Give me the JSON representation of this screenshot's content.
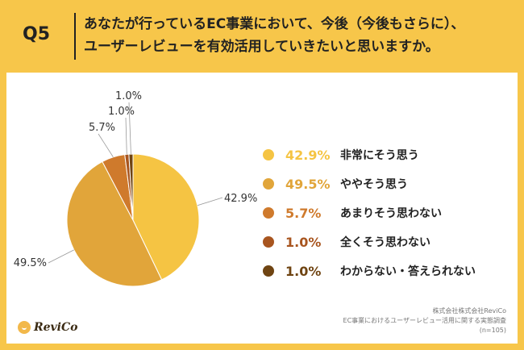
{
  "header": {
    "q_label": "Q5",
    "question_line1": "あなたが行っているEC事業において、今後（今後もさらに）、",
    "question_line2": "ユーザーレビューを有効活用していきたいと思いますか。"
  },
  "chart_data": {
    "type": "pie",
    "categories": [
      "非常にそう思う",
      "ややそう思う",
      "あまりそう思わない",
      "全くそう思わない",
      "わからない・答えられない"
    ],
    "values": [
      42.9,
      49.5,
      5.7,
      1.0,
      1.0
    ],
    "value_labels": [
      "42.9%",
      "49.5%",
      "5.7%",
      "1.0%",
      "1.0%"
    ],
    "colors": [
      "#f5c443",
      "#e1a53a",
      "#cf7a2c",
      "#a8551f",
      "#6f4412"
    ],
    "legend_placement": "right"
  },
  "footer": {
    "company": "株式会社株式会社ReviCo",
    "survey": "EC事業におけるユーザーレビュー活用に関する実態調査",
    "sample": "(n=105)"
  },
  "logo": {
    "text": "ReviCo"
  }
}
